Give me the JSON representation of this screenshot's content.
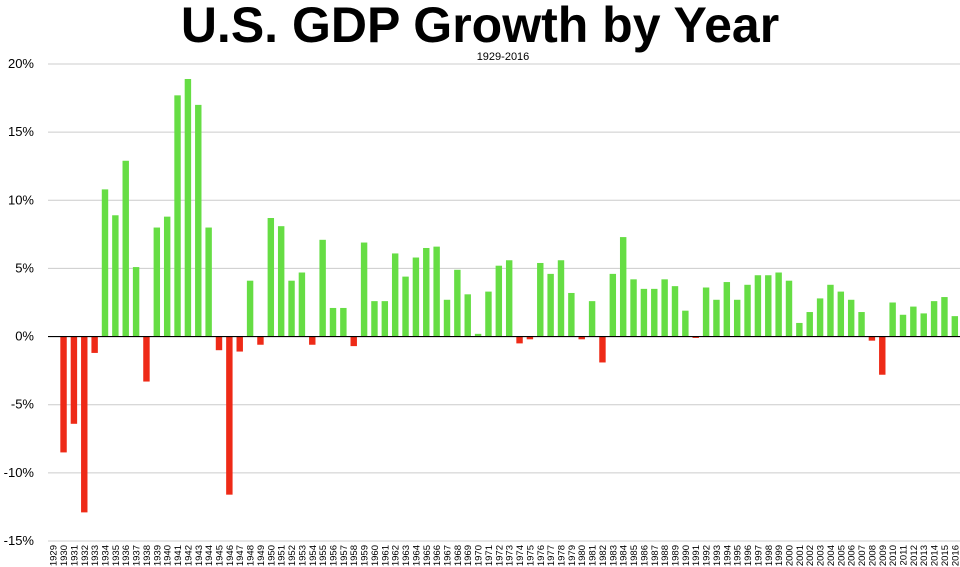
{
  "chart_data": {
    "type": "bar",
    "title": "U.S. GDP Growth by Year",
    "subtitle": "1929-2016",
    "xlabel": "",
    "ylabel": "",
    "ylim": [
      -15,
      20
    ],
    "y_ticks": [
      "20%",
      "15%",
      "10%",
      "5%",
      "0%",
      "-5%",
      "-10%",
      "-15%"
    ],
    "y_tick_values": [
      20,
      15,
      10,
      5,
      0,
      -5,
      -10,
      -15
    ],
    "grid": true,
    "colors": {
      "positive": "#66dd44",
      "negative": "#ee2a17",
      "grid": "#cccccc",
      "axis": "#000000"
    },
    "categories": [
      "1929",
      "1930",
      "1931",
      "1932",
      "1933",
      "1934",
      "1935",
      "1936",
      "1937",
      "1938",
      "1939",
      "1940",
      "1941",
      "1942",
      "1943",
      "1944",
      "1945",
      "1946",
      "1947",
      "1948",
      "1949",
      "1950",
      "1951",
      "1952",
      "1953",
      "1954",
      "1955",
      "1956",
      "1957",
      "1958",
      "1959",
      "1960",
      "1961",
      "1962",
      "1963",
      "1964",
      "1965",
      "1966",
      "1967",
      "1968",
      "1969",
      "1970",
      "1971",
      "1972",
      "1973",
      "1974",
      "1975",
      "1976",
      "1977",
      "1978",
      "1979",
      "1980",
      "1981",
      "1982",
      "1983",
      "1984",
      "1985",
      "1986",
      "1987",
      "1988",
      "1989",
      "1990",
      "1991",
      "1992",
      "1993",
      "1994",
      "1995",
      "1996",
      "1997",
      "1998",
      "1999",
      "2000",
      "2001",
      "2002",
      "2003",
      "2004",
      "2005",
      "2006",
      "2007",
      "2008",
      "2009",
      "2010",
      "2011",
      "2012",
      "2013",
      "2014",
      "2015",
      "2016"
    ],
    "values": [
      null,
      -8.5,
      -6.4,
      -12.9,
      -1.2,
      10.8,
      8.9,
      12.9,
      5.1,
      -3.3,
      8.0,
      8.8,
      17.7,
      18.9,
      17.0,
      8.0,
      -1.0,
      -11.6,
      -1.1,
      4.1,
      -0.6,
      8.7,
      8.1,
      4.1,
      4.7,
      -0.6,
      7.1,
      2.1,
      2.1,
      -0.7,
      6.9,
      2.6,
      2.6,
      6.1,
      4.4,
      5.8,
      6.5,
      6.6,
      2.7,
      4.9,
      3.1,
      0.2,
      3.3,
      5.2,
      5.6,
      -0.5,
      -0.2,
      5.4,
      4.6,
      5.6,
      3.2,
      -0.2,
      2.6,
      -1.9,
      4.6,
      7.3,
      4.2,
      3.5,
      3.5,
      4.2,
      3.7,
      1.9,
      -0.1,
      3.6,
      2.7,
      4.0,
      2.7,
      3.8,
      4.5,
      4.5,
      4.7,
      4.1,
      1.0,
      1.8,
      2.8,
      3.8,
      3.3,
      2.7,
      1.8,
      -0.3,
      -2.8,
      2.5,
      1.6,
      2.2,
      1.7,
      2.6,
      2.9,
      1.5
    ]
  }
}
